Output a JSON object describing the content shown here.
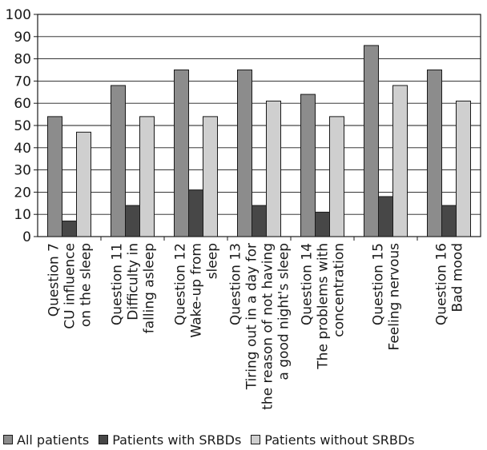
{
  "chart_data": {
    "type": "bar",
    "title": "",
    "xlabel": "",
    "ylabel": "",
    "ylim": [
      0,
      100
    ],
    "yticks": [
      0,
      10,
      20,
      30,
      40,
      50,
      60,
      70,
      80,
      90,
      100
    ],
    "grid": true,
    "legend_position": "bottom",
    "categories": [
      [
        "Question 7",
        "CU influence",
        "on the sleep"
      ],
      [
        "Question 11",
        "Difficulty in",
        "falling asleep"
      ],
      [
        "Question 12",
        "Wake-up from",
        "sleep"
      ],
      [
        "Question 13",
        "Tiring out in a day for",
        "the reason of not having",
        "a good night's sleep"
      ],
      [
        "Question 14",
        "The problems with",
        "concentration"
      ],
      [
        "Question 15",
        "Feeling nervous"
      ],
      [
        "Question 16",
        "Bad mood"
      ]
    ],
    "series": [
      {
        "name": "All patients",
        "color": "#8c8c8c",
        "values": [
          54,
          68,
          75,
          75,
          64,
          86,
          75
        ]
      },
      {
        "name": "Patients with SRBDs",
        "color": "#474747",
        "values": [
          7,
          14,
          21,
          14,
          11,
          18,
          14
        ]
      },
      {
        "name": "Patients without SRBDs",
        "color": "#cfcfcf",
        "values": [
          47,
          54,
          54,
          61,
          54,
          68,
          61
        ]
      }
    ]
  }
}
